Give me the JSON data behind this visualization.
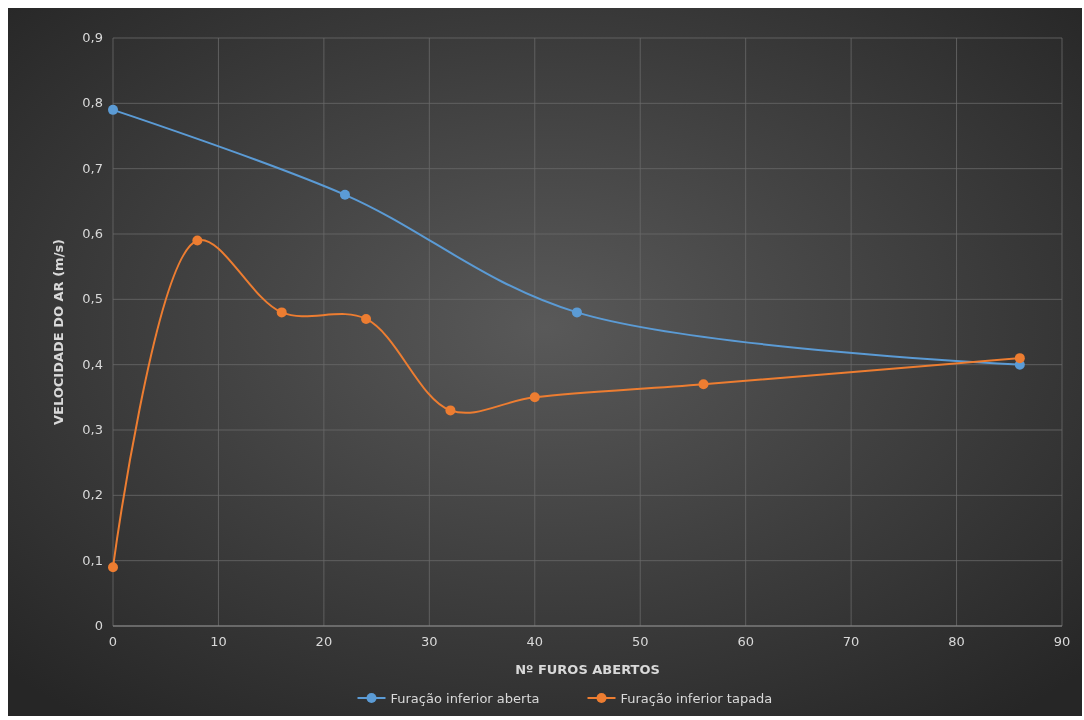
{
  "chart_data": {
    "type": "line",
    "xlabel": "Nº FUROS ABERTOS",
    "ylabel": "VELOCIDADE DO AR (m/s)",
    "xlim": [
      0,
      90
    ],
    "xticks": [
      0,
      10,
      20,
      30,
      40,
      50,
      60,
      70,
      80,
      90
    ],
    "ylim": [
      0,
      0.9
    ],
    "yticks": [
      0,
      {
        "value": 0.1,
        "label": "0,1"
      },
      {
        "value": 0.2,
        "label": "0,2"
      },
      {
        "value": 0.3,
        "label": "0,3"
      },
      {
        "value": 0.4,
        "label": "0,4"
      },
      {
        "value": 0.5,
        "label": "0,5"
      },
      {
        "value": 0.6,
        "label": "0,6"
      },
      {
        "value": 0.7,
        "label": "0,7"
      },
      {
        "value": 0.8,
        "label": "0,8"
      },
      {
        "value": 0.9,
        "label": "0,9"
      }
    ],
    "grid": true,
    "legend": "bottom",
    "marker": "circle",
    "series": [
      {
        "name": "Furação inferior aberta",
        "color": "#5b9bd5",
        "x": [
          0,
          22,
          44,
          86
        ],
        "values": [
          0.79,
          0.66,
          0.48,
          0.4
        ]
      },
      {
        "name": "Furação inferior tapada",
        "color": "#ed7d31",
        "x": [
          0,
          8,
          16,
          24,
          32,
          40,
          56,
          86
        ],
        "values": [
          0.09,
          0.59,
          0.48,
          0.47,
          0.33,
          0.35,
          0.37,
          0.41
        ]
      }
    ]
  }
}
